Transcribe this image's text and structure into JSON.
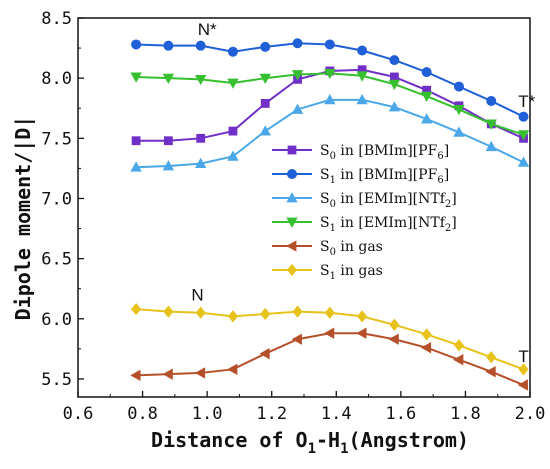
{
  "chart_data": {
    "type": "line",
    "xlabel_main": "Distance of O",
    "xlabel_sub1": "1",
    "xlabel_mid": "-H",
    "xlabel_sub2": "1",
    "xlabel_tail": "(Angstrom)",
    "ylabel": "Dipole moment/|D|",
    "xlim": [
      0.6,
      2.0
    ],
    "ylim": [
      5.35,
      8.5
    ],
    "xticks": [
      0.6,
      0.8,
      1.0,
      1.2,
      1.4,
      1.6,
      1.8,
      2.0
    ],
    "xtick_labels": [
      "0.6",
      "0.8",
      "1.0",
      "1.2",
      "1.4",
      "1.6",
      "1.8",
      "2.0"
    ],
    "yticks": [
      5.5,
      6.0,
      6.5,
      7.0,
      7.5,
      8.0,
      8.5
    ],
    "ytick_labels": [
      "5.5",
      "6.0",
      "6.5",
      "7.0",
      "7.5",
      "8.0",
      "8.5"
    ],
    "x": [
      0.78,
      0.88,
      0.98,
      1.08,
      1.18,
      1.28,
      1.38,
      1.48,
      1.58,
      1.68,
      1.78,
      1.88,
      1.98
    ],
    "series": [
      {
        "name": "S0 in [BMIm][PF6]",
        "label_main": "S",
        "label_sub": "0",
        "label_rest": " in [BMIm][PF",
        "label_sub2": "6",
        "label_end": "]",
        "color": "#7030c8",
        "marker": "square",
        "values": [
          7.48,
          7.48,
          7.5,
          7.56,
          7.79,
          7.99,
          8.06,
          8.07,
          8.01,
          7.9,
          7.77,
          7.62,
          7.5
        ]
      },
      {
        "name": "S1 in [BMIm][PF6]",
        "label_main": "S",
        "label_sub": "1",
        "label_rest": " in [BMIm][PF",
        "label_sub2": "6",
        "label_end": "]",
        "color": "#1f5fd8",
        "marker": "circle",
        "values": [
          8.28,
          8.27,
          8.27,
          8.22,
          8.26,
          8.29,
          8.28,
          8.23,
          8.15,
          8.05,
          7.93,
          7.81,
          7.68
        ]
      },
      {
        "name": "S0 in [EMIm][NTf2]",
        "label_main": "S",
        "label_sub": "0",
        "label_rest": " in [EMIm][NTf",
        "label_sub2": "2",
        "label_end": "]",
        "color": "#4aa8e8",
        "marker": "triangle-up",
        "values": [
          7.26,
          7.27,
          7.29,
          7.35,
          7.56,
          7.74,
          7.82,
          7.82,
          7.76,
          7.66,
          7.55,
          7.43,
          7.3
        ]
      },
      {
        "name": "S1 in [EMIm][NTf2]",
        "label_main": "S",
        "label_sub": "1",
        "label_rest": " in [EMIm][NTf",
        "label_sub2": "2",
        "label_end": "]",
        "color": "#36c030",
        "marker": "triangle-down",
        "values": [
          8.01,
          8.0,
          7.99,
          7.96,
          8.0,
          8.03,
          8.04,
          8.02,
          7.95,
          7.85,
          7.74,
          7.62,
          7.53
        ]
      },
      {
        "name": "S0 in gas",
        "label_main": "S",
        "label_sub": "0",
        "label_rest": " in gas",
        "label_sub2": "",
        "label_end": "",
        "color": "#b5502a",
        "marker": "triangle-left",
        "values": [
          5.53,
          5.54,
          5.55,
          5.58,
          5.71,
          5.83,
          5.88,
          5.88,
          5.83,
          5.76,
          5.66,
          5.56,
          5.45
        ]
      },
      {
        "name": "S1 in gas",
        "label_main": "S",
        "label_sub": "1",
        "label_rest": " in gas",
        "label_sub2": "",
        "label_end": "",
        "color": "#e6c21a",
        "marker": "diamond",
        "values": [
          6.08,
          6.06,
          6.05,
          6.02,
          6.04,
          6.06,
          6.05,
          6.02,
          5.95,
          5.87,
          5.78,
          5.68,
          5.58
        ]
      }
    ],
    "annotations": [
      {
        "text": "N*",
        "x": 1.0,
        "y": 8.36
      },
      {
        "text": "T*",
        "x": 1.99,
        "y": 7.76
      },
      {
        "text": "N",
        "x": 0.97,
        "y": 6.15
      },
      {
        "text": "T",
        "x": 1.98,
        "y": 5.64
      }
    ],
    "legend_position": "center-right",
    "grid": false
  }
}
